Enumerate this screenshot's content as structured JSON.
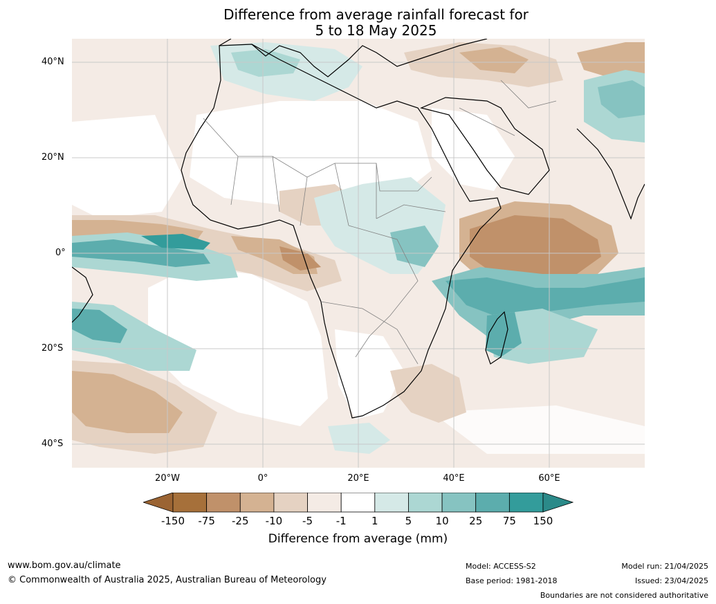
{
  "title_line1": "Difference from average rainfall forecast for",
  "title_line2": "5 to 18 May 2025",
  "lat_labels": [
    "40°N",
    "20°N",
    "0°",
    "20°S",
    "40°S"
  ],
  "lon_labels": [
    "20°W",
    "0°",
    "20°E",
    "40°E",
    "60°E"
  ],
  "colorbar": {
    "ticks": [
      "-150",
      "-75",
      "-25",
      "-10",
      "-5",
      "-1",
      "1",
      "5",
      "10",
      "25",
      "75",
      "150"
    ],
    "colors": [
      "#a6703a",
      "#c0916a",
      "#d4b292",
      "#e5d2c2",
      "#f4ebe5",
      "#ffffff",
      "#d5e9e7",
      "#acd7d3",
      "#86c3c1",
      "#5cadad",
      "#339c9b"
    ],
    "under_color": "#9b6433",
    "over_color": "#2b8a89",
    "label": "Difference from average (mm)"
  },
  "footer": {
    "url": "www.bom.gov.au/climate",
    "copyright": "© Commonwealth of Australia 2025, Australian Bureau of Meteorology",
    "model": "Model: ACCESS-S2",
    "base_period": "Base period: 1981-2018",
    "model_run": "Model run: 21/04/2025",
    "issued": "Issued: 23/04/2025",
    "disclaimer": "Boundaries are not considered authoritative"
  }
}
